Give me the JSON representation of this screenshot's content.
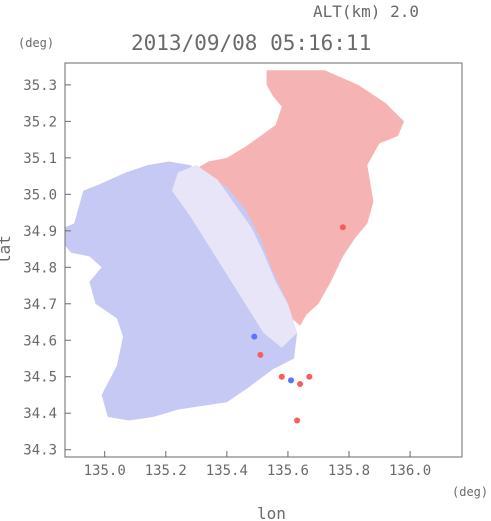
{
  "header": {
    "altitude_label": "ALT(km) 2.0",
    "timestamp": "2013/09/08 05:16:11"
  },
  "chart_data": {
    "type": "heatmap",
    "title": "2013/09/08 05:16:11",
    "subtitle": "ALT(km) 2.0",
    "xlabel": "lon",
    "ylabel": "lat",
    "x_unit": "(deg)",
    "y_unit": "(deg)",
    "xlim": [
      134.87,
      136.17
    ],
    "ylim": [
      34.28,
      35.36
    ],
    "x_ticks": [
      135.0,
      135.2,
      135.4,
      135.6,
      135.8,
      136.0
    ],
    "y_ticks": [
      34.3,
      34.4,
      34.5,
      34.6,
      34.7,
      34.8,
      34.9,
      35.0,
      35.1,
      35.2,
      35.3
    ],
    "grid": false,
    "colors": {
      "approaching": "#9aa0ee",
      "receding": "#f3a0a0",
      "near_zero": "#f4f2fa",
      "axis": "#6a6a6a"
    },
    "regions": [
      {
        "name": "receding",
        "color": "#f6b3b3",
        "polygon": [
          [
            135.53,
            35.3
          ],
          [
            135.53,
            35.34
          ],
          [
            135.72,
            35.34
          ],
          [
            135.83,
            35.3
          ],
          [
            135.92,
            35.25
          ],
          [
            135.98,
            35.2
          ],
          [
            135.96,
            35.16
          ],
          [
            135.9,
            35.14
          ],
          [
            135.86,
            35.08
          ],
          [
            135.88,
            34.98
          ],
          [
            135.86,
            34.92
          ],
          [
            135.82,
            34.88
          ],
          [
            135.78,
            34.83
          ],
          [
            135.74,
            34.76
          ],
          [
            135.7,
            34.7
          ],
          [
            135.66,
            34.67
          ],
          [
            135.64,
            34.64
          ],
          [
            135.6,
            34.67
          ],
          [
            135.54,
            34.75
          ],
          [
            135.5,
            34.84
          ],
          [
            135.42,
            34.95
          ],
          [
            135.35,
            35.02
          ],
          [
            135.3,
            35.07
          ],
          [
            135.34,
            35.09
          ],
          [
            135.4,
            35.1
          ],
          [
            135.46,
            35.13
          ],
          [
            135.51,
            35.16
          ],
          [
            135.56,
            35.19
          ],
          [
            135.58,
            35.24
          ],
          [
            135.55,
            35.27
          ]
        ]
      },
      {
        "name": "approaching",
        "color": "#c6c9f4",
        "polygon": [
          [
            134.87,
            34.91
          ],
          [
            134.9,
            34.92
          ],
          [
            134.93,
            35.01
          ],
          [
            134.99,
            35.03
          ],
          [
            135.07,
            35.06
          ],
          [
            135.14,
            35.08
          ],
          [
            135.21,
            35.09
          ],
          [
            135.28,
            35.08
          ],
          [
            135.34,
            35.05
          ],
          [
            135.4,
            35.02
          ],
          [
            135.46,
            34.96
          ],
          [
            135.51,
            34.88
          ],
          [
            135.55,
            34.79
          ],
          [
            135.6,
            34.7
          ],
          [
            135.63,
            34.62
          ],
          [
            135.62,
            34.55
          ],
          [
            135.55,
            34.52
          ],
          [
            135.47,
            34.47
          ],
          [
            135.4,
            34.43
          ],
          [
            135.32,
            34.42
          ],
          [
            135.24,
            34.41
          ],
          [
            135.16,
            34.39
          ],
          [
            135.08,
            34.38
          ],
          [
            135.01,
            34.39
          ],
          [
            134.99,
            34.45
          ],
          [
            135.04,
            34.53
          ],
          [
            135.06,
            34.61
          ],
          [
            135.04,
            34.66
          ],
          [
            134.97,
            34.7
          ],
          [
            134.95,
            34.76
          ],
          [
            134.99,
            34.8
          ],
          [
            134.95,
            34.83
          ],
          [
            134.89,
            34.84
          ],
          [
            134.87,
            34.86
          ]
        ]
      },
      {
        "name": "transition",
        "color": "#e7e5f7",
        "polygon": [
          [
            135.3,
            35.08
          ],
          [
            135.37,
            35.04
          ],
          [
            135.42,
            34.98
          ],
          [
            135.48,
            34.91
          ],
          [
            135.52,
            34.84
          ],
          [
            135.56,
            34.76
          ],
          [
            135.6,
            34.7
          ],
          [
            135.63,
            34.62
          ],
          [
            135.58,
            34.58
          ],
          [
            135.52,
            34.62
          ],
          [
            135.46,
            34.7
          ],
          [
            135.4,
            34.78
          ],
          [
            135.34,
            34.86
          ],
          [
            135.28,
            34.94
          ],
          [
            135.22,
            35.01
          ],
          [
            135.24,
            35.06
          ]
        ]
      }
    ],
    "speckles": [
      {
        "x": 135.58,
        "y": 34.5,
        "color": "#ff5a5a"
      },
      {
        "x": 135.61,
        "y": 34.49,
        "color": "#5d73ff"
      },
      {
        "x": 135.64,
        "y": 34.48,
        "color": "#ff5a5a"
      },
      {
        "x": 135.67,
        "y": 34.5,
        "color": "#ff5a5a"
      },
      {
        "x": 135.63,
        "y": 34.38,
        "color": "#ff5a5a"
      },
      {
        "x": 135.78,
        "y": 34.91,
        "color": "#ff5a5a"
      },
      {
        "x": 135.49,
        "y": 34.61,
        "color": "#5d73ff"
      },
      {
        "x": 135.51,
        "y": 34.56,
        "color": "#ff5a5a"
      }
    ]
  }
}
